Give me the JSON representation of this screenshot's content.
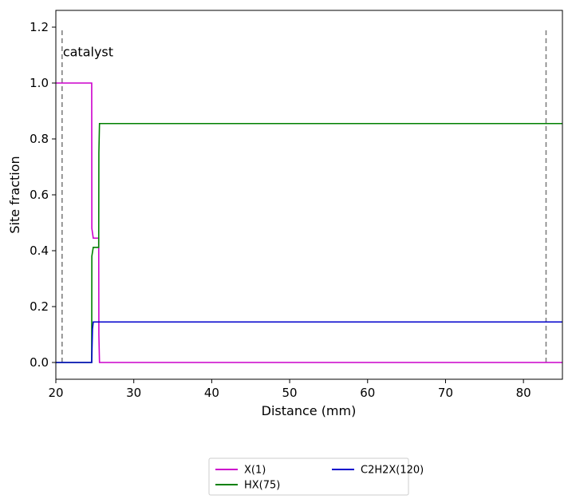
{
  "chart_data": {
    "type": "line",
    "title": "",
    "xlabel": "Distance (mm)",
    "ylabel": "Site fraction",
    "xlim": [
      20,
      85
    ],
    "ylim": [
      -0.06,
      1.26
    ],
    "xticks": [
      20,
      30,
      40,
      50,
      60,
      70,
      80
    ],
    "yticks": [
      0.0,
      0.2,
      0.4,
      0.6,
      0.8,
      1.0,
      1.2
    ],
    "grid": false,
    "legend_position": "bottom-center, below axes",
    "annotations": [
      {
        "text": "catalyst",
        "x": 20.8,
        "y": 1.11
      }
    ],
    "vlines": [
      {
        "x": 20.8,
        "ymin": 0.0,
        "ymax": 1.19,
        "style": "dashed",
        "color": "#808080"
      },
      {
        "x": 82.9,
        "ymin": 0.0,
        "ymax": 1.19,
        "style": "dashed",
        "color": "#808080"
      }
    ],
    "series": [
      {
        "name": "X(1)",
        "color": "#cc00cc",
        "x": [
          20,
          24.6,
          24.62,
          24.8,
          25.5,
          25.52,
          25.6,
          85
        ],
        "y": [
          1.0,
          1.0,
          0.48,
          0.445,
          0.445,
          0.1,
          0.0,
          0.0
        ]
      },
      {
        "name": "HX(75)",
        "color": "#008000",
        "x": [
          20,
          24.6,
          24.62,
          24.8,
          25.5,
          25.52,
          25.6,
          85
        ],
        "y": [
          0.0,
          0.0,
          0.38,
          0.412,
          0.412,
          0.75,
          0.855,
          0.855
        ]
      },
      {
        "name": "C2H2X(120)",
        "color": "#0000cc",
        "x": [
          20,
          24.6,
          24.7,
          24.8,
          85
        ],
        "y": [
          0.0,
          0.0,
          0.12,
          0.145,
          0.145
        ]
      }
    ],
    "legend": {
      "columns": 2,
      "entries": [
        "X(1)",
        "HX(75)",
        "C2H2X(120)"
      ]
    }
  }
}
